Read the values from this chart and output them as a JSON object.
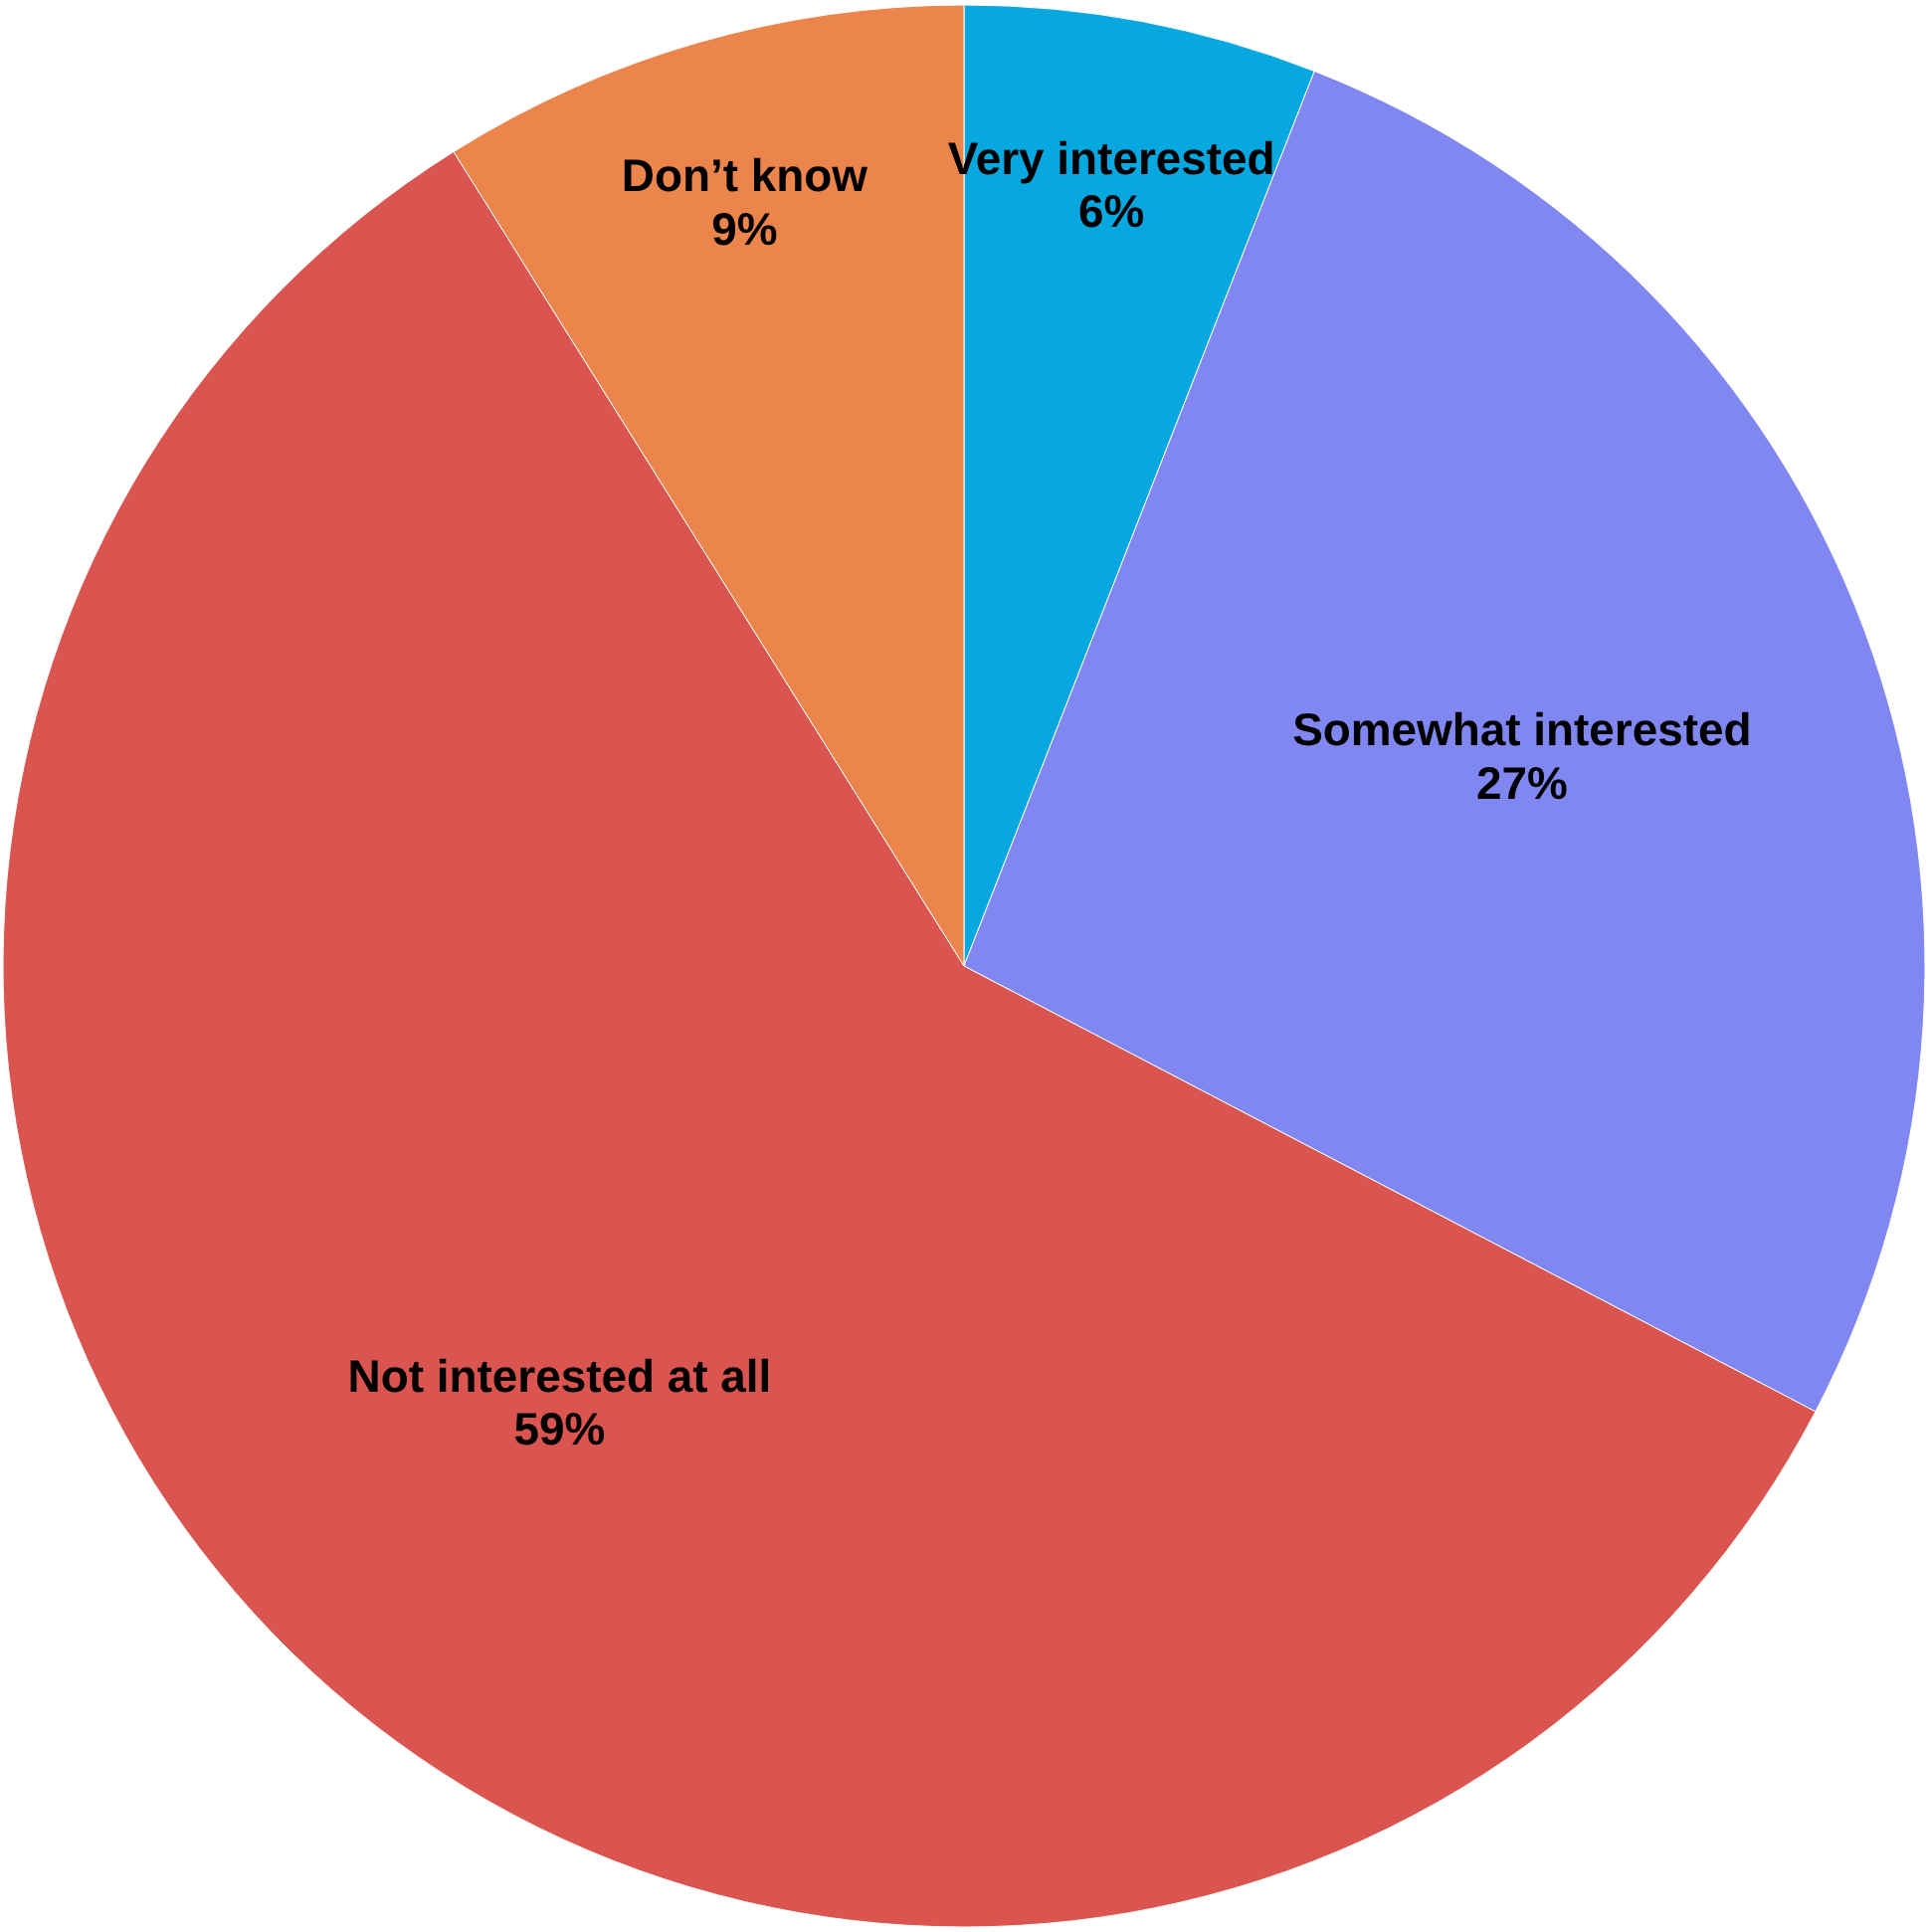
{
  "chart_data": {
    "type": "pie",
    "categories": [
      "Very interested",
      "Somewhat interested",
      "Not interested at all",
      "Don’t know"
    ],
    "values": [
      6,
      27,
      59,
      9
    ],
    "colors": [
      "#07a7df",
      "#8087f0",
      "#da5450",
      "#ec854b"
    ],
    "value_labels": [
      "6%",
      "27%",
      "59%",
      "9%"
    ],
    "legend": false
  }
}
